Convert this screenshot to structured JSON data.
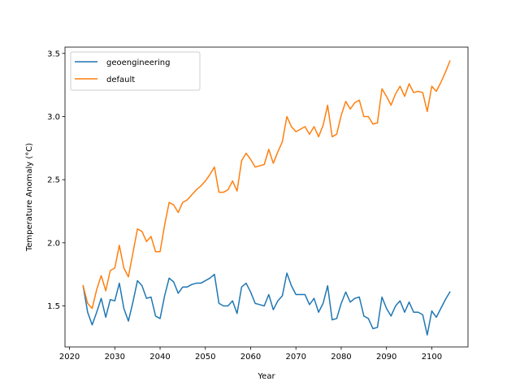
{
  "chart_data": {
    "type": "line",
    "title": "",
    "xlabel": "Year",
    "ylabel": "Temperature Anomaly (°C)",
    "xlim": [
      2019,
      2108
    ],
    "ylim": [
      1.175,
      3.55
    ],
    "xticks": [
      2020,
      2030,
      2040,
      2050,
      2060,
      2070,
      2080,
      2090,
      2100
    ],
    "yticks": [
      1.5,
      2.0,
      2.5,
      3.0,
      3.5
    ],
    "ytick_labels": [
      "1.5",
      "2.0",
      "2.5",
      "3.0",
      "3.5"
    ],
    "grid": false,
    "legend_position": "upper-left",
    "x": [
      2023,
      2024,
      2025,
      2026,
      2027,
      2028,
      2029,
      2030,
      2031,
      2032,
      2033,
      2034,
      2035,
      2036,
      2037,
      2038,
      2039,
      2040,
      2041,
      2042,
      2043,
      2044,
      2045,
      2046,
      2047,
      2048,
      2049,
      2050,
      2051,
      2052,
      2053,
      2054,
      2055,
      2056,
      2057,
      2058,
      2059,
      2060,
      2061,
      2062,
      2063,
      2064,
      2065,
      2066,
      2067,
      2068,
      2069,
      2070,
      2071,
      2072,
      2073,
      2074,
      2075,
      2076,
      2077,
      2078,
      2079,
      2080,
      2081,
      2082,
      2083,
      2084,
      2085,
      2086,
      2087,
      2088,
      2089,
      2090,
      2091,
      2092,
      2093,
      2094,
      2095,
      2096,
      2097,
      2098,
      2099,
      2100,
      2101,
      2102,
      2103,
      2104
    ],
    "series": [
      {
        "name": "geoengineering",
        "color": "#1f77b4",
        "values": [
          1.66,
          1.45,
          1.35,
          1.45,
          1.56,
          1.41,
          1.55,
          1.54,
          1.68,
          1.48,
          1.38,
          1.53,
          1.7,
          1.66,
          1.56,
          1.57,
          1.42,
          1.4,
          1.58,
          1.72,
          1.69,
          1.6,
          1.65,
          1.65,
          1.67,
          1.68,
          1.68,
          1.7,
          1.72,
          1.75,
          1.52,
          1.5,
          1.5,
          1.54,
          1.44,
          1.65,
          1.68,
          1.61,
          1.52,
          1.51,
          1.5,
          1.59,
          1.47,
          1.54,
          1.58,
          1.76,
          1.66,
          1.59,
          1.59,
          1.59,
          1.51,
          1.56,
          1.45,
          1.52,
          1.66,
          1.39,
          1.4,
          1.52,
          1.61,
          1.53,
          1.56,
          1.57,
          1.42,
          1.4,
          1.32,
          1.33,
          1.57,
          1.48,
          1.42,
          1.5,
          1.54,
          1.45,
          1.53,
          1.45,
          1.45,
          1.43,
          1.27,
          1.46,
          1.41,
          1.48,
          1.55,
          1.61
        ]
      },
      {
        "name": "default",
        "color": "#ff7f0e",
        "values": [
          1.66,
          1.52,
          1.48,
          1.63,
          1.74,
          1.62,
          1.78,
          1.8,
          1.98,
          1.8,
          1.73,
          1.92,
          2.11,
          2.09,
          2.01,
          2.05,
          1.93,
          1.93,
          2.14,
          2.32,
          2.3,
          2.24,
          2.32,
          2.34,
          2.38,
          2.42,
          2.45,
          2.49,
          2.54,
          2.6,
          2.4,
          2.4,
          2.42,
          2.49,
          2.41,
          2.65,
          2.71,
          2.66,
          2.6,
          2.61,
          2.62,
          2.74,
          2.63,
          2.72,
          2.8,
          3.0,
          2.92,
          2.88,
          2.9,
          2.92,
          2.86,
          2.92,
          2.84,
          2.93,
          3.09,
          2.84,
          2.86,
          3.01,
          3.12,
          3.06,
          3.11,
          3.13,
          3.0,
          3.0,
          2.94,
          2.95,
          3.22,
          3.16,
          3.09,
          3.18,
          3.24,
          3.16,
          3.26,
          3.19,
          3.2,
          3.19,
          3.04,
          3.24,
          3.2,
          3.27,
          3.35,
          3.44
        ]
      }
    ]
  }
}
